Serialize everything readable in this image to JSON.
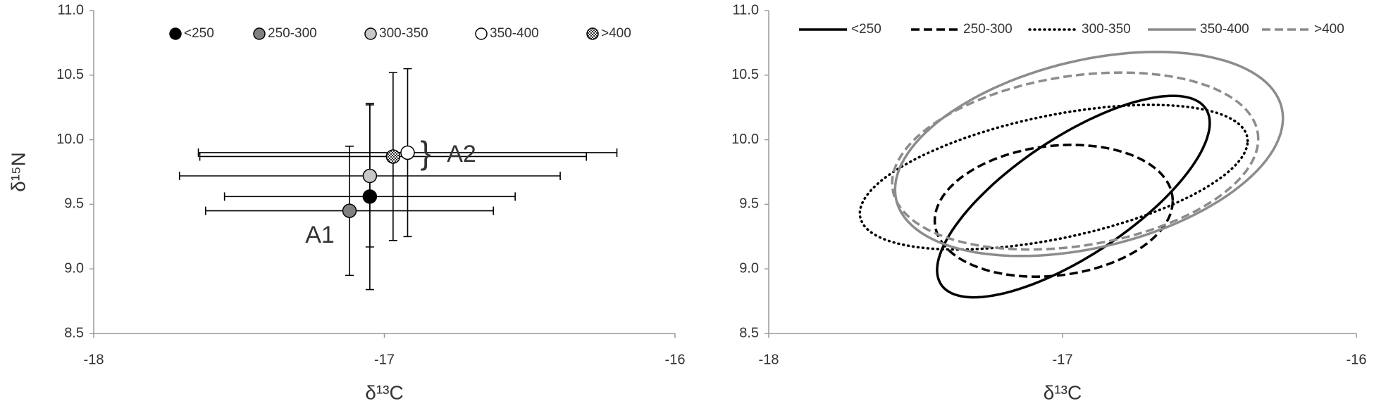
{
  "chart_data": [
    {
      "type": "scatter",
      "x_label": "δ¹³C",
      "y_label": "δ¹⁵N",
      "xlim": [
        -18,
        -16
      ],
      "ylim": [
        8.5,
        11
      ],
      "xticks": [
        -18,
        -17,
        -16
      ],
      "yticks": [
        8.5,
        {
          "value": 9,
          "label": "9.0"
        },
        9.5,
        {
          "value": 10,
          "label": "10.0"
        },
        10.5,
        {
          "value": 11,
          "label": "11.0"
        }
      ],
      "annotations": [
        "A1",
        "}",
        "A2"
      ],
      "series": [
        {
          "name": "<250",
          "color": "#000000",
          "x": [
            -17.05
          ],
          "values": [
            9.56
          ],
          "x_error": [
            0.5
          ],
          "y_error": [
            0.72
          ]
        },
        {
          "name": "250-300",
          "color": "#808080",
          "x": [
            -17.12
          ],
          "values": [
            9.45
          ],
          "x_error": [
            0.495
          ],
          "y_error": [
            0.5
          ]
        },
        {
          "name": "300-350",
          "color": "#c8c8c8",
          "x": [
            -17.05
          ],
          "values": [
            9.72
          ],
          "x_error": [
            0.655
          ],
          "y_error": [
            0.55
          ]
        },
        {
          "name": "350-400",
          "color": "#ffffff",
          "x": [
            -16.92
          ],
          "values": [
            9.9
          ],
          "x_error": [
            0.72
          ],
          "y_error": [
            0.65
          ]
        },
        {
          "name": ">400",
          "color": "checkered",
          "x": [
            -16.97
          ],
          "values": [
            9.87
          ],
          "x_error": [
            0.665
          ],
          "y_error": [
            0.65
          ]
        }
      ]
    },
    {
      "type": "ellipse",
      "x_label": "δ¹³C",
      "xlim": [
        -18,
        -16
      ],
      "ylim": [
        8.5,
        11
      ],
      "xticks": [
        -18,
        -17,
        -16
      ],
      "yticks": [
        8.5,
        {
          "value": 9,
          "label": "9.0"
        },
        9.5,
        {
          "value": 10,
          "label": "10.0"
        },
        10.5,
        {
          "value": 11,
          "label": "11.0"
        }
      ],
      "series": [
        {
          "name": "<250",
          "color": "#000000",
          "dash": "solid",
          "mean_x": -16.963,
          "mean_y": 9.56,
          "sd_x": 0.464,
          "sd_y": 0.78,
          "correlation": 0.73
        },
        {
          "name": "250-300",
          "color": "#000000",
          "dash": "dashed",
          "mean_x": -17.03,
          "mean_y": 9.45,
          "sd_x": 0.405,
          "sd_y": 0.51,
          "correlation": 0.15
        },
        {
          "name": "300-350",
          "color": "#000000",
          "dash": "dotted",
          "mean_x": -17.03,
          "mean_y": 9.71,
          "sd_x": 0.66,
          "sd_y": 0.56,
          "correlation": 0.5
        },
        {
          "name": "350-400",
          "color": "#8c8c8c",
          "dash": "solid",
          "mean_x": -16.91,
          "mean_y": 9.89,
          "sd_x": 0.66,
          "sd_y": 0.79,
          "correlation": 0.35
        },
        {
          "name": ">400",
          "color": "#8c8c8c",
          "dash": "dashed",
          "mean_x": -16.957,
          "mean_y": 9.835,
          "sd_x": 0.623,
          "sd_y": 0.685,
          "correlation": 0.25
        }
      ]
    }
  ]
}
